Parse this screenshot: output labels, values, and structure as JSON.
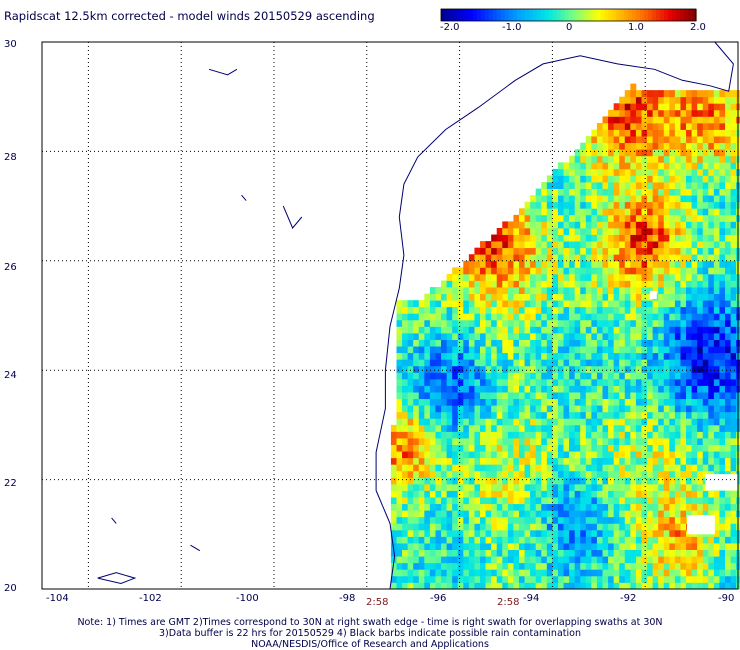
{
  "title": "Rapidscat 12.5km corrected - model winds 20150529 ascending",
  "colorbar": {
    "ticks": [
      "-2.0",
      "-1.0",
      "0",
      "1.0",
      "2.0"
    ],
    "colors": [
      "#00008f",
      "#0040ff",
      "#00c0ff",
      "#40ffc0",
      "#c0ff40",
      "#ffc000",
      "#ff4000",
      "#8f0000"
    ]
  },
  "map": {
    "x_ticks": [
      "-104",
      "-102",
      "-100",
      "-98",
      "-96",
      "-94",
      "-92",
      "-90"
    ],
    "y_ticks": [
      "30",
      "28",
      "26",
      "24",
      "22",
      "20"
    ],
    "lon_range": [
      -105,
      -90
    ],
    "lat_range": [
      20,
      30
    ],
    "coast_color": "#000070",
    "grid_color": "#000000"
  },
  "time_labels": [
    "2:58",
    "2:58"
  ],
  "notes": [
    "Note: 1) Times are GMT 2)Times correspond to 30N at right swath edge - time is right swath for overlapping swaths at 30N",
    "3)Data buffer is 22 hrs for 20150529 4) Black barbs indicate possible rain contamination",
    "NOAA/NESDIS/Office of Research and Applications"
  ]
}
